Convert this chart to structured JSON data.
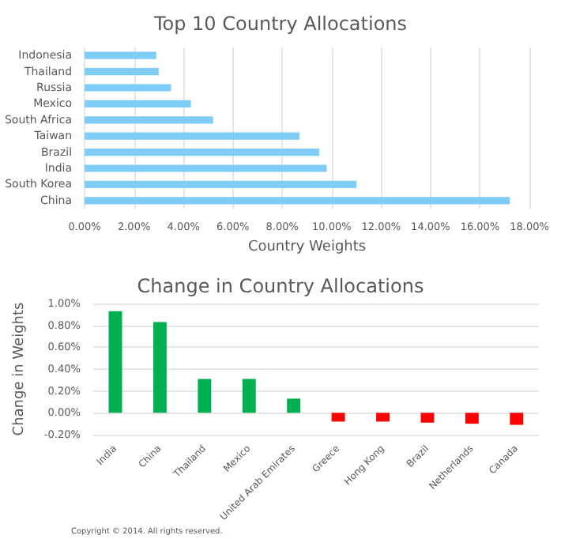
{
  "chart_data": [
    {
      "type": "bar",
      "orientation": "horizontal",
      "title": "Top 10 Country Allocations",
      "xlabel": "Country Weights",
      "categories": [
        "Indonesia",
        "Thailand",
        "Russia",
        "Mexico",
        "South Africa",
        "Taiwan",
        "Brazil",
        "India",
        "South Korea",
        "China"
      ],
      "values": [
        2.9,
        3.0,
        3.5,
        4.3,
        5.2,
        8.7,
        9.5,
        9.8,
        11.0,
        17.2
      ],
      "color": "#7fcdf7",
      "xlim": [
        0,
        18
      ],
      "xticks": [
        {
          "value": 0,
          "label": "0.00%"
        },
        {
          "value": 2,
          "label": "2.00%"
        },
        {
          "value": 4,
          "label": "4.00%"
        },
        {
          "value": 6,
          "label": "6.00%"
        },
        {
          "value": 8,
          "label": "8.00%"
        },
        {
          "value": 10,
          "label": "10.00%"
        },
        {
          "value": 12,
          "label": "12.00%"
        },
        {
          "value": 14,
          "label": "14.00%"
        },
        {
          "value": 16,
          "label": "16.00%"
        },
        {
          "value": 18,
          "label": "18.00%"
        }
      ],
      "grid": "x"
    },
    {
      "type": "bar",
      "title": "Change in Country Allocations",
      "ylabel": "Change in Weights",
      "categories": [
        "India",
        "China",
        "Thailand",
        "Mexico",
        "United Arab Emirates",
        "Greece",
        "Hong Kong",
        "Brazil",
        "Netherlands",
        "Canada"
      ],
      "values": [
        0.93,
        0.83,
        0.31,
        0.31,
        0.13,
        -0.08,
        -0.08,
        -0.09,
        -0.1,
        -0.11
      ],
      "colors": [
        "#00b050",
        "#00b050",
        "#00b050",
        "#00b050",
        "#00b050",
        "#ff0000",
        "#ff0000",
        "#ff0000",
        "#ff0000",
        "#ff0000"
      ],
      "ylim": [
        -0.2,
        1.0
      ],
      "yticks": [
        {
          "value": -0.2,
          "label": "-0.20%"
        },
        {
          "value": 0,
          "label": "0.00%"
        },
        {
          "value": 0.2,
          "label": "0.20%"
        },
        {
          "value": 0.4,
          "label": "0.40%"
        },
        {
          "value": 0.6,
          "label": "0.60%"
        },
        {
          "value": 0.8,
          "label": "0.80%"
        },
        {
          "value": 1.0,
          "label": "1.00%"
        }
      ],
      "grid": "y",
      "annotations": [
        "Copyright © 2014. All rights reserved."
      ]
    }
  ]
}
